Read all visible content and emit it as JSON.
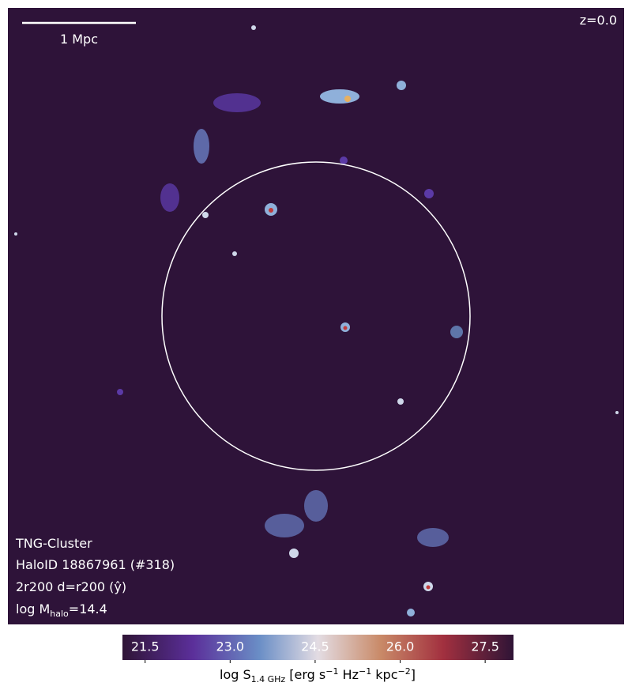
{
  "chart_data": {
    "type": "map",
    "annotations": {
      "redshift": "z=0.0",
      "scale_bar": "1 Mpc",
      "info": [
        "TNG-Cluster",
        "HaloID 18867961 (#318)",
        "2r200 d=r200 (ŷ)"
      ],
      "mass_label": [
        "log M",
        "halo",
        "=14.4"
      ]
    },
    "colorbar": {
      "label": [
        "log S",
        "1.4 GHz",
        " [erg s",
        "−1",
        " Hz",
        "−1",
        " kpc",
        "−2",
        "]"
      ],
      "clim": [
        21.1,
        28.0
      ],
      "ticks": [
        21.5,
        {
          "value": 23,
          "label": "23.0"
        },
        24.5,
        {
          "value": 26,
          "label": "26.0"
        },
        27.5
      ]
    }
  }
}
